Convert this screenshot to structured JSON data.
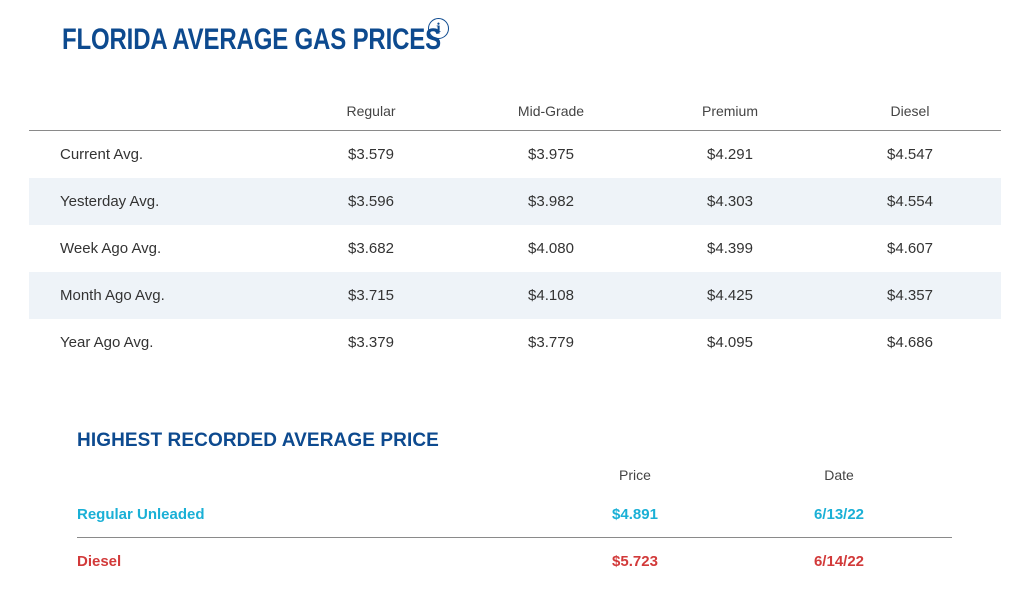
{
  "header": {
    "title": "FLORIDA AVERAGE GAS PRICES",
    "info_icon": "info-icon"
  },
  "price_table": {
    "columns": [
      "Regular",
      "Mid-Grade",
      "Premium",
      "Diesel"
    ],
    "rows": [
      {
        "label": "Current Avg.",
        "values": [
          "$3.579",
          "$3.975",
          "$4.291",
          "$4.547"
        ]
      },
      {
        "label": "Yesterday Avg.",
        "values": [
          "$3.596",
          "$3.982",
          "$4.303",
          "$4.554"
        ]
      },
      {
        "label": "Week Ago Avg.",
        "values": [
          "$3.682",
          "$4.080",
          "$4.399",
          "$4.607"
        ]
      },
      {
        "label": "Month Ago Avg.",
        "values": [
          "$3.715",
          "$4.108",
          "$4.425",
          "$4.357"
        ]
      },
      {
        "label": "Year Ago Avg.",
        "values": [
          "$3.379",
          "$3.779",
          "$4.095",
          "$4.686"
        ]
      }
    ]
  },
  "record": {
    "title": "HIGHEST RECORDED AVERAGE PRICE",
    "columns": [
      "Price",
      "Date"
    ],
    "rows": [
      {
        "label": "Regular Unleaded",
        "price": "$4.891",
        "date": "6/13/22",
        "color": "#1ab0d6"
      },
      {
        "label": "Diesel",
        "price": "$5.723",
        "date": "6/14/22",
        "color": "#d23a3a"
      }
    ]
  }
}
